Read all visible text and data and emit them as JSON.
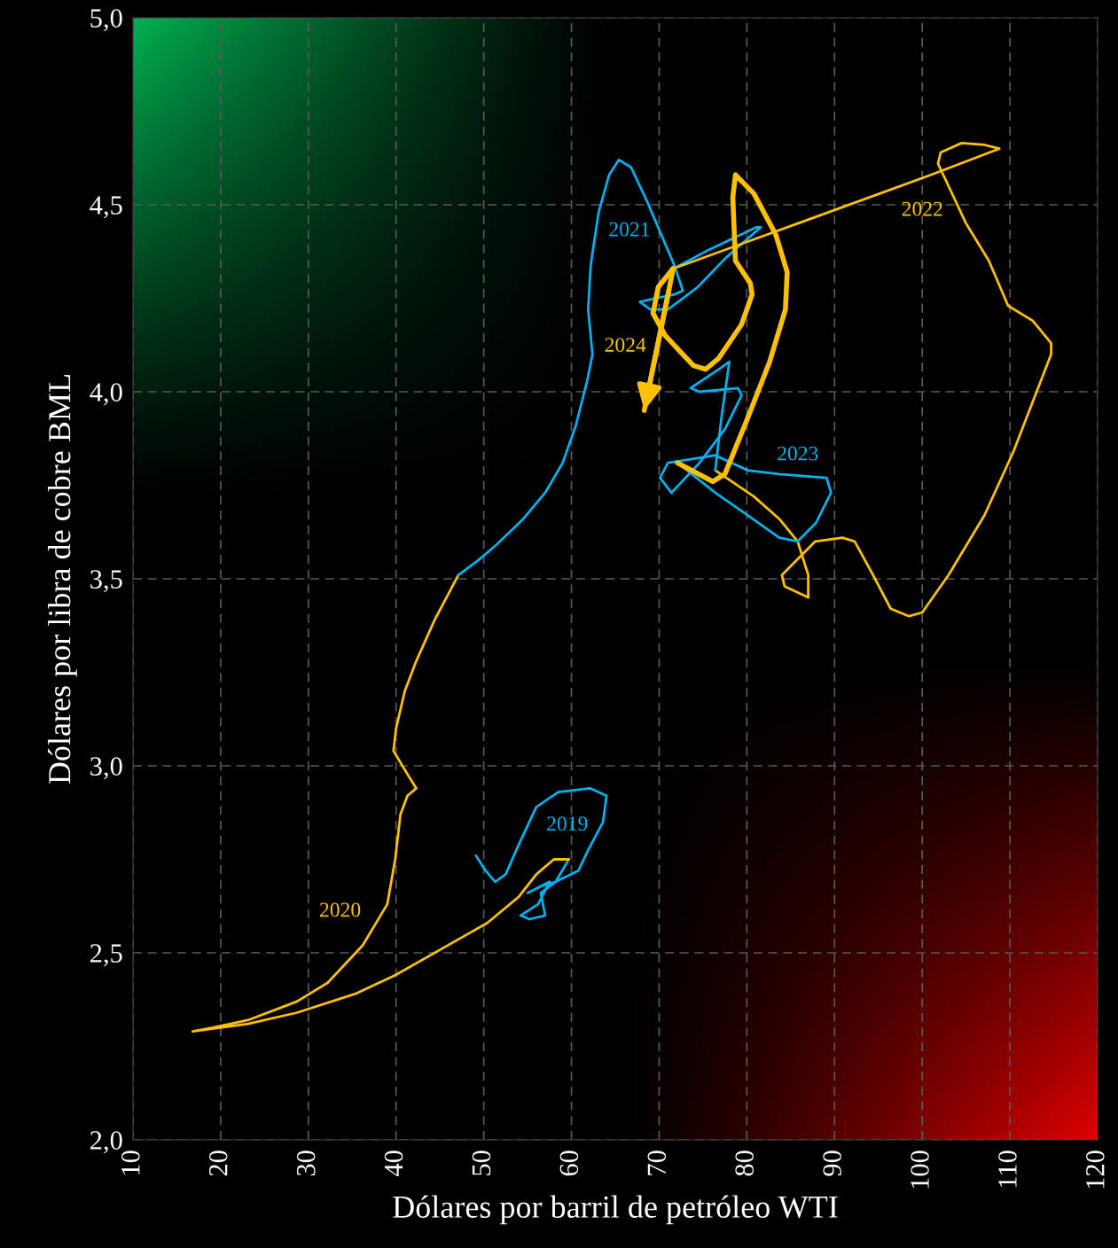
{
  "chart_data": {
    "type": "line",
    "xlabel": "Dólares por barril de petróleo WTI",
    "ylabel": "Dólares por libra de cobre BML",
    "xlim": [
      10,
      120
    ],
    "ylim": [
      2.0,
      5.0
    ],
    "xticks": [
      10,
      20,
      30,
      40,
      50,
      60,
      70,
      80,
      90,
      100,
      110,
      120
    ],
    "yticks": [
      {
        "value": 2.0,
        "label": "2,0"
      },
      {
        "value": 2.5,
        "label": "2,5"
      },
      {
        "value": 3.0,
        "label": "3,0"
      },
      {
        "value": 3.5,
        "label": "3,5"
      },
      {
        "value": 4.0,
        "label": "4,0"
      },
      {
        "value": 4.5,
        "label": "4,5"
      },
      {
        "value": 5.0,
        "label": "5,0"
      }
    ],
    "grid": true,
    "legend": false,
    "marker": "none",
    "line_style": "solid",
    "series": [
      {
        "name": "2019",
        "color": "#00b0f0",
        "x": [
          49.1,
          50.2,
          51.3,
          52.5,
          54.0,
          56.0,
          58.5,
          62.1,
          64.0,
          63.6,
          61.8,
          60.8,
          58.2,
          56.7,
          55.0,
          57.5,
          56.2,
          54.2,
          55.2,
          57.0,
          56.5,
          58.2,
          59.7
        ],
        "values": [
          2.76,
          2.72,
          2.69,
          2.71,
          2.79,
          2.89,
          2.93,
          2.94,
          2.92,
          2.85,
          2.77,
          2.72,
          2.69,
          2.68,
          2.66,
          2.69,
          2.63,
          2.6,
          2.59,
          2.6,
          2.66,
          2.69,
          2.75
        ]
      },
      {
        "name": "2020",
        "color": "#ffc000",
        "x": [
          59.7,
          58.0,
          56.0,
          54.0,
          50.4,
          47.4,
          39.9,
          35.3,
          28.7,
          23.1,
          16.8,
          19.1,
          23.1,
          28.7,
          32.2,
          36.2,
          39.0,
          39.9,
          40.5,
          41.3,
          42.3,
          41.5,
          39.7,
          40.0,
          41.0,
          42.3,
          44.4,
          47.1
        ],
        "values": [
          2.75,
          2.75,
          2.71,
          2.65,
          2.58,
          2.54,
          2.44,
          2.39,
          2.34,
          2.31,
          2.29,
          2.3,
          2.32,
          2.37,
          2.42,
          2.52,
          2.63,
          2.75,
          2.87,
          2.92,
          2.94,
          2.97,
          3.04,
          3.1,
          3.2,
          3.28,
          3.39,
          3.51
        ]
      },
      {
        "name": "2021",
        "color": "#00b0f0",
        "x": [
          47.1,
          49.4,
          51.4,
          54.5,
          57.0,
          59.0,
          60.5,
          61.8,
          62.4,
          61.9,
          62.2,
          63.1,
          64.3,
          65.4,
          66.8,
          68.6,
          71.7,
          72.7,
          71.7,
          69.6,
          67.8,
          69.0,
          71.0,
          74.4,
          77.7,
          81.6,
          81.1,
          78.4,
          75.7,
          71.7
        ],
        "values": [
          3.51,
          3.55,
          3.59,
          3.66,
          3.73,
          3.81,
          3.91,
          4.03,
          4.1,
          4.22,
          4.34,
          4.48,
          4.58,
          4.62,
          4.6,
          4.51,
          4.34,
          4.27,
          4.26,
          4.25,
          4.24,
          4.22,
          4.22,
          4.28,
          4.36,
          4.44,
          4.44,
          4.41,
          4.38,
          4.33
        ]
      },
      {
        "name": "2022",
        "color": "#ffc000",
        "x": [
          71.7,
          85.8,
          101.0,
          108.8,
          107.1,
          104.5,
          102.1,
          101.8,
          102.4,
          105.0,
          107.6,
          109.8,
          112.6,
          114.7,
          114.7,
          110.4,
          107.1,
          103.0,
          100.0,
          98.5,
          96.4,
          94.4,
          92.3,
          90.9,
          87.8,
          84.0,
          84.3,
          87.0,
          87.0,
          85.8,
          83.7,
          80.8,
          76.4
        ],
        "values": [
          4.33,
          4.45,
          4.58,
          4.65,
          4.66,
          4.665,
          4.64,
          4.61,
          4.58,
          4.45,
          4.35,
          4.23,
          4.19,
          4.13,
          4.1,
          3.84,
          3.67,
          3.51,
          3.41,
          3.4,
          3.42,
          3.51,
          3.6,
          3.61,
          3.6,
          3.51,
          3.48,
          3.45,
          3.51,
          3.6,
          3.66,
          3.72,
          3.79
        ]
      },
      {
        "name": "2023",
        "color": "#00b0f0",
        "x": [
          76.4,
          77.1,
          78.0,
          76.8,
          73.6,
          74.6,
          79.0,
          79.4,
          77.5,
          74.6,
          71.4,
          70.1,
          71.0,
          76.4,
          80.1,
          83.7,
          89.1,
          89.6,
          87.9,
          85.8,
          83.7,
          80.1,
          76.4,
          72.1
        ],
        "values": [
          3.79,
          3.93,
          4.08,
          4.06,
          4.01,
          4.0,
          4.01,
          3.99,
          3.9,
          3.81,
          3.73,
          3.77,
          3.81,
          3.83,
          3.79,
          3.78,
          3.77,
          3.73,
          3.65,
          3.6,
          3.61,
          3.67,
          3.73,
          3.81
        ]
      },
      {
        "name": "2024",
        "color": "#ffc000",
        "x": [
          72.1,
          76.1,
          77.5,
          80.1,
          82.6,
          84.4,
          84.6,
          83.3,
          80.8,
          78.7,
          78.4,
          78.7,
          80.4,
          80.6,
          79.4,
          76.8,
          75.3,
          73.9,
          70.7,
          69.3,
          69.9,
          71.6,
          71.1,
          68.3
        ],
        "values": [
          3.81,
          3.76,
          3.78,
          3.93,
          4.08,
          4.22,
          4.32,
          4.42,
          4.53,
          4.58,
          4.52,
          4.35,
          4.29,
          4.26,
          4.18,
          4.09,
          4.06,
          4.07,
          4.15,
          4.21,
          4.28,
          4.33,
          4.27,
          3.95
        ]
      }
    ]
  }
}
